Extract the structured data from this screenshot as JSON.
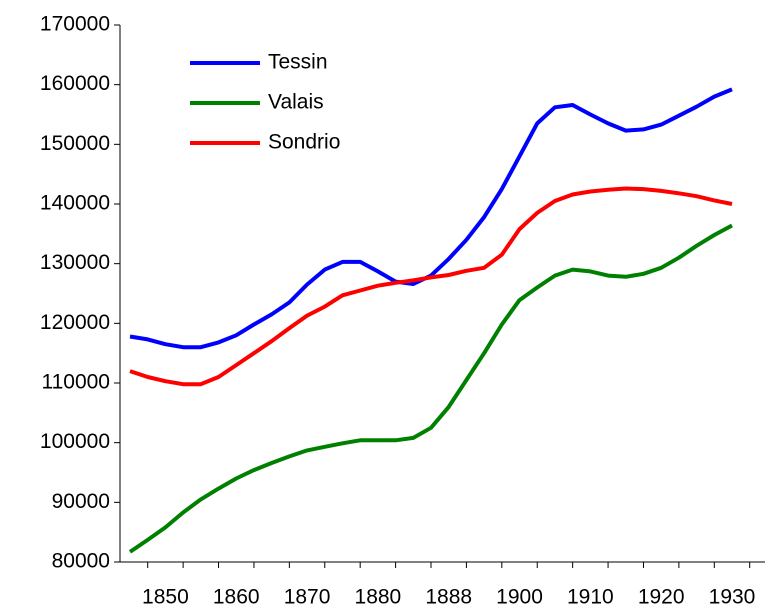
{
  "chart_data": {
    "type": "line",
    "categories": [
      null,
      null,
      "1850",
      null,
      null,
      null,
      "1860",
      null,
      null,
      null,
      "1870",
      null,
      null,
      null,
      "1880",
      null,
      null,
      null,
      "1888",
      null,
      null,
      null,
      "1900",
      null,
      null,
      null,
      "1910",
      null,
      null,
      null,
      "1920",
      null,
      null,
      null,
      "1930"
    ],
    "series": [
      {
        "name": "Tessin",
        "color": "#0000ff",
        "values": [
          117800,
          117300,
          116500,
          116000,
          116000,
          116800,
          118000,
          119800,
          121500,
          123500,
          126500,
          129000,
          130300,
          130300,
          128700,
          127000,
          126600,
          128000,
          130800,
          134000,
          137800,
          142500,
          148000,
          153500,
          156200,
          156600,
          155000,
          153500,
          152300,
          152500,
          153300,
          154800,
          156300,
          158000,
          159200
        ]
      },
      {
        "name": "Valais",
        "color": "#008000",
        "values": [
          81700,
          83700,
          85800,
          88300,
          90500,
          92300,
          94000,
          95400,
          96600,
          97700,
          98700,
          99300,
          99900,
          100400,
          100400,
          100400,
          100800,
          102500,
          106000,
          110500,
          115000,
          119800,
          123900,
          126000,
          128000,
          129000,
          128700,
          128000,
          127800,
          128300,
          129300,
          131000,
          133000,
          134800,
          136400
        ]
      },
      {
        "name": "Sondrio",
        "color": "#ff0000",
        "values": [
          112000,
          111000,
          110300,
          109800,
          109800,
          111000,
          113000,
          115000,
          117000,
          119200,
          121300,
          122800,
          124700,
          125500,
          126300,
          126800,
          127200,
          127700,
          128100,
          128800,
          129300,
          131500,
          135800,
          138500,
          140500,
          141600,
          142100,
          142400,
          142600,
          142500,
          142200,
          141800,
          141300,
          140600,
          140000
        ]
      }
    ],
    "ylim": [
      80000,
      170000
    ],
    "yticks": [
      80000,
      90000,
      100000,
      110000,
      120000,
      130000,
      140000,
      150000,
      160000,
      170000
    ],
    "legend": "upper-left"
  }
}
